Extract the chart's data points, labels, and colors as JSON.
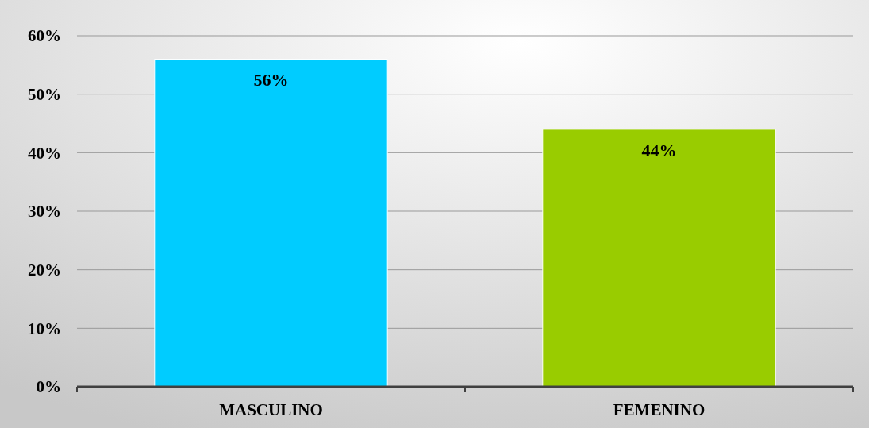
{
  "chart_data": {
    "type": "bar",
    "categories": [
      "MASCULINO",
      "FEMENINO"
    ],
    "values": [
      56,
      44
    ],
    "colors": [
      "#00ccff",
      "#99cc00"
    ],
    "value_labels": [
      "56%",
      "44%"
    ],
    "ylim": [
      0,
      60
    ],
    "yticks": [
      {
        "value": 0,
        "label": "0%"
      },
      {
        "value": 10,
        "label": "10%"
      },
      {
        "value": 20,
        "label": "20%"
      },
      {
        "value": 30,
        "label": "30%"
      },
      {
        "value": 40,
        "label": "40%"
      },
      {
        "value": 50,
        "label": "50%"
      },
      {
        "value": 60,
        "label": "60%"
      }
    ],
    "grid": "y"
  }
}
